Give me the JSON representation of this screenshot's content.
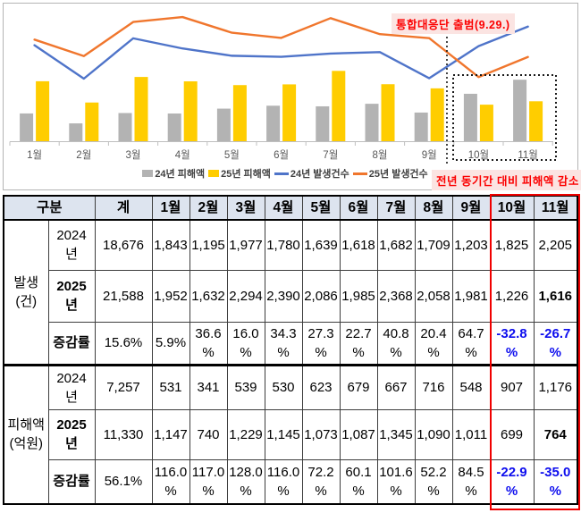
{
  "chart_data": {
    "type": "combo",
    "categories": [
      "1월",
      "2월",
      "3월",
      "4월",
      "5월",
      "6월",
      "7월",
      "8월",
      "9월",
      "10월",
      "11월"
    ],
    "series": [
      {
        "name": "24년 피해액",
        "type": "bar",
        "color": "#b3b3b3",
        "values": [
          531,
          341,
          539,
          530,
          623,
          679,
          667,
          716,
          548,
          907,
          1176
        ]
      },
      {
        "name": "25년 피해액",
        "type": "bar",
        "color": "#ffcd00",
        "values": [
          1147,
          740,
          1229,
          1145,
          1073,
          1087,
          1345,
          1090,
          1011,
          699,
          764
        ]
      },
      {
        "name": "24년 발생건수",
        "type": "line",
        "color": "#4f74c9",
        "values": [
          1843,
          1195,
          1977,
          1780,
          1639,
          1618,
          1682,
          1709,
          1203,
          1825,
          2205
        ]
      },
      {
        "name": "25년 발생건수",
        "type": "line",
        "color": "#f0762d",
        "values": [
          1952,
          1632,
          2294,
          2390,
          2086,
          1985,
          2368,
          2058,
          1981,
          1226,
          1616
        ]
      }
    ],
    "legend_position": "bottom",
    "grid": false,
    "annotations": {
      "launch_label": "통합대응단 출범(9.29.)",
      "decrease_label": "전년 동기간 대비 피해액 감소"
    },
    "highlight_months": [
      "10월",
      "11월"
    ],
    "highlight_color": "#f00000",
    "annotation_text_color": "#fb0000",
    "annotation_bg_color": "#fbe4e2"
  },
  "table": {
    "group_header": "구분",
    "columns": [
      "계",
      "1월",
      "2월",
      "3월",
      "4월",
      "5월",
      "6월",
      "7월",
      "8월",
      "9월",
      "10월",
      "11월"
    ],
    "sections": [
      {
        "label": "발생\n(건)",
        "rows": [
          {
            "label": "2024\n년",
            "values": [
              "18,676",
              "1,843",
              "1,195",
              "1,977",
              "1,780",
              "1,639",
              "1,618",
              "1,682",
              "1,709",
              "1,203",
              "1,825",
              "2,205"
            ]
          },
          {
            "label": "2025\n년",
            "values": [
              "21,588",
              "1,952",
              "1,632",
              "2,294",
              "2,390",
              "2,086",
              "1,985",
              "2,368",
              "2,058",
              "1,981",
              "1,226",
              "1,616"
            ]
          },
          {
            "label": "증감률",
            "values": [
              "15.6%",
              "5.9%",
              "36.6\n%",
              "16.0\n%",
              "34.3\n%",
              "27.3\n%",
              "22.7\n%",
              "40.8\n%",
              "20.4\n%",
              "64.7\n%",
              "-32.8\n%",
              "-26.7\n%"
            ]
          }
        ]
      },
      {
        "label": "피해액\n(억원)",
        "rows": [
          {
            "label": "2024\n년",
            "values": [
              "7,257",
              "531",
              "341",
              "539",
              "530",
              "623",
              "679",
              "667",
              "716",
              "548",
              "907",
              "1,176"
            ]
          },
          {
            "label": "2025\n년",
            "values": [
              "11,330",
              "1,147",
              "740",
              "1,229",
              "1,145",
              "1,073",
              "1,087",
              "1,345",
              "1,090",
              "1,011",
              "699",
              "764"
            ]
          },
          {
            "label": "증감률",
            "values": [
              "56.1%",
              "116.0\n%",
              "117.0\n%",
              "128.0\n%",
              "116.0\n%",
              "72.2\n%",
              "60.1\n%",
              "101.6\n%",
              "52.2\n%",
              "84.5\n%",
              "-22.9\n%",
              "-35.0\n%"
            ]
          }
        ]
      }
    ],
    "header_bg": "#dde4ef",
    "negative_text_color": "#0d0dee"
  }
}
